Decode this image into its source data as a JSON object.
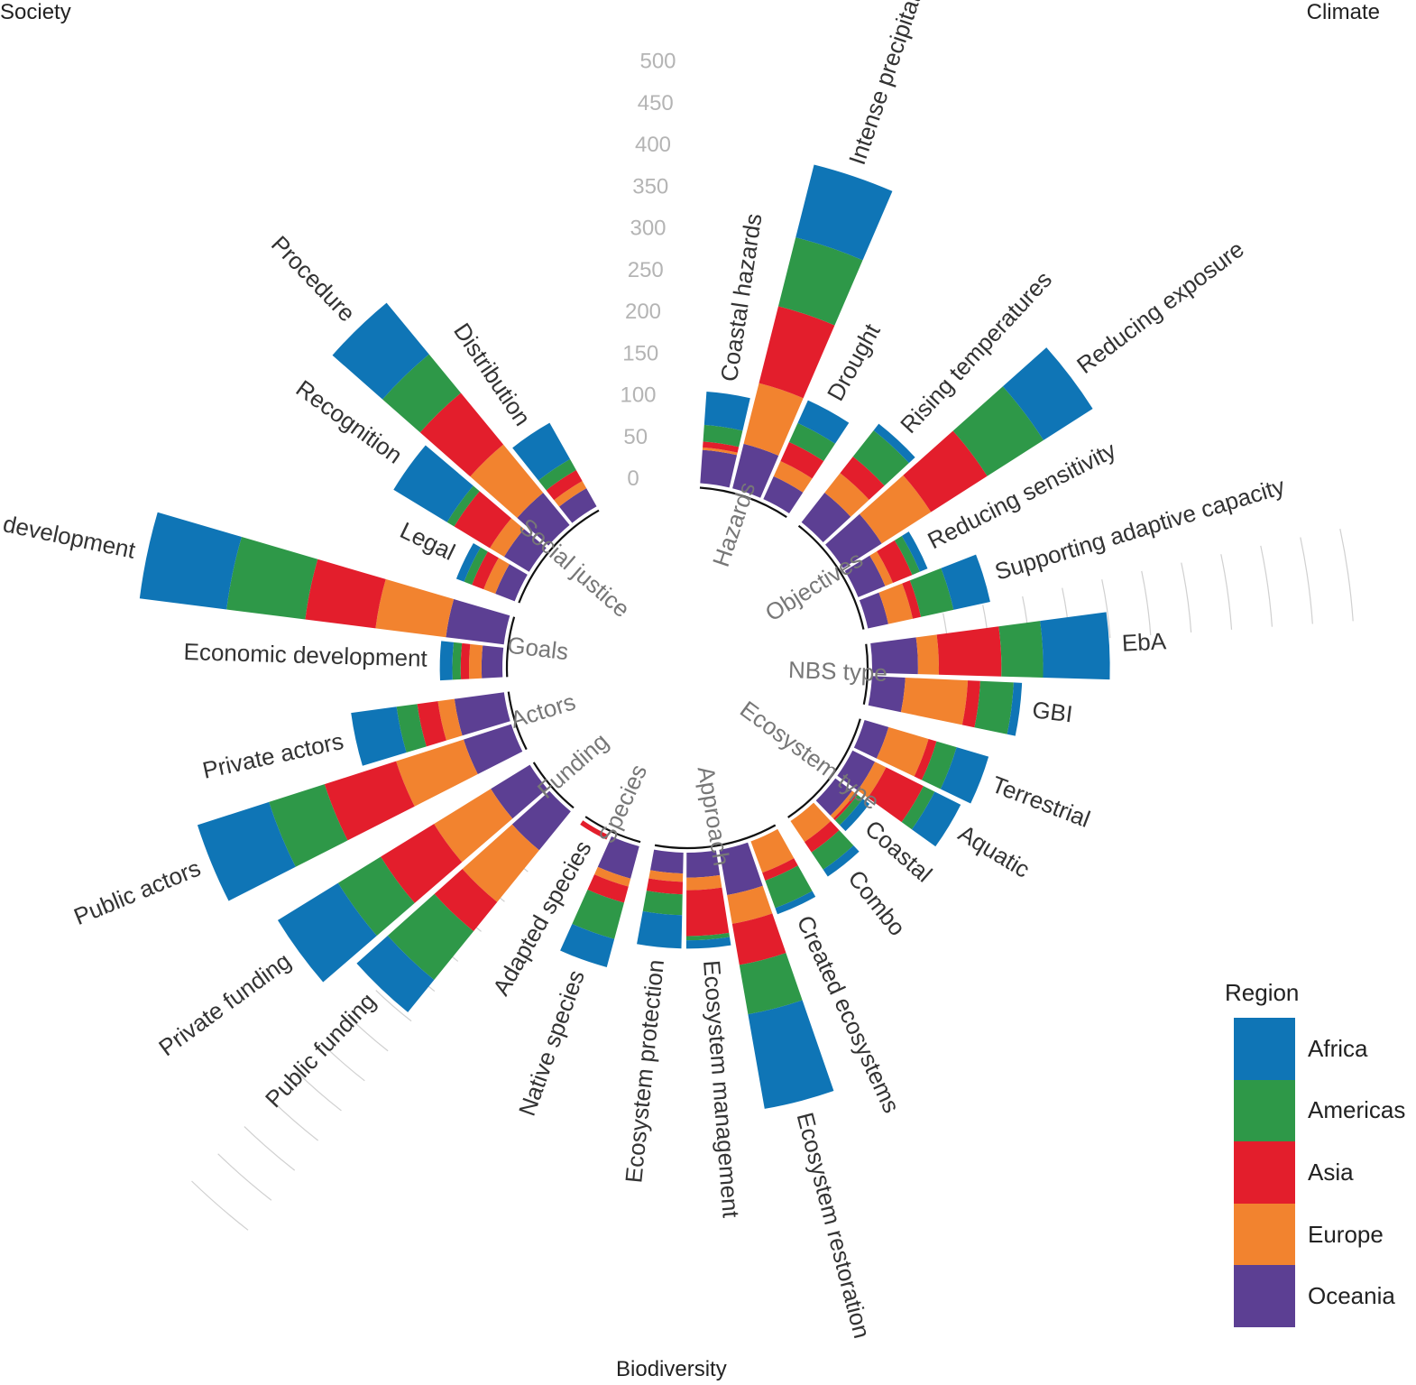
{
  "corners": {
    "top_left": "Society",
    "top_right": "Climate",
    "bottom": "Biodiversity"
  },
  "legend": {
    "title": "Region",
    "items": [
      {
        "name": "Africa",
        "color": "#0f75b6"
      },
      {
        "name": "Americas",
        "color": "#2e9848"
      },
      {
        "name": "Asia",
        "color": "#e31e2c"
      },
      {
        "name": "Europe",
        "color": "#f2832f"
      },
      {
        "name": "Oceania",
        "color": "#5c3f93"
      }
    ]
  },
  "chart_data": {
    "type": "radial stacked bar",
    "stack_order_inner_to_outer": [
      "Oceania",
      "Europe",
      "Asia",
      "Americas",
      "Africa"
    ],
    "radial_axis": {
      "range": [
        0,
        500
      ],
      "ticks": [
        "0",
        "50",
        "100",
        "150",
        "200",
        "250",
        "300",
        "350",
        "400",
        "450",
        "500"
      ]
    },
    "groups": [
      {
        "name": "Hazards",
        "bars": [
          {
            "label": "Coastal hazards",
            "values": {
              "Oceania": 40,
              "Europe": 3,
              "Asia": 7,
              "Americas": 20,
              "Africa": 40
            }
          },
          {
            "label": "Intense precipitation",
            "values": {
              "Oceania": 55,
              "Europe": 75,
              "Asia": 95,
              "Americas": 85,
              "Africa": 90
            }
          },
          {
            "label": "Drought",
            "values": {
              "Oceania": 30,
              "Europe": 20,
              "Asia": 25,
              "Americas": 25,
              "Africa": 30
            }
          }
        ]
      },
      {
        "name": "Objectives",
        "bars": [
          {
            "label": "Rising temperatures",
            "values": {
              "Oceania": 45,
              "Europe": 30,
              "Asia": 25,
              "Americas": 40,
              "Africa": 10
            }
          },
          {
            "label": "Reducing exposure",
            "values": {
              "Oceania": 55,
              "Europe": 70,
              "Asia": 80,
              "Americas": 80,
              "Africa": 70
            }
          },
          {
            "label": "Reducing sensitivity",
            "values": {
              "Oceania": 35,
              "Europe": 10,
              "Asia": 25,
              "Americas": 10,
              "Africa": 10
            }
          },
          {
            "label": "Supporting adaptive capacity",
            "values": {
              "Oceania": 25,
              "Europe": 30,
              "Asia": 10,
              "Americas": 40,
              "Africa": 45
            }
          }
        ]
      },
      {
        "name": "NBS type",
        "bars": [
          {
            "label": "EbA",
            "values": {
              "Oceania": 55,
              "Europe": 25,
              "Asia": 75,
              "Americas": 50,
              "Africa": 80
            }
          },
          {
            "label": "GBI",
            "values": {
              "Oceania": 40,
              "Europe": 75,
              "Asia": 15,
              "Americas": 40,
              "Africa": 10
            }
          }
        ]
      },
      {
        "name": "Ecosystem type",
        "bars": [
          {
            "label": "Terrestrial",
            "values": {
              "Oceania": 30,
              "Europe": 50,
              "Asia": 10,
              "Americas": 25,
              "Africa": 40
            }
          },
          {
            "label": "Aquatic",
            "values": {
              "Oceania": 30,
              "Europe": 15,
              "Asia": 50,
              "Americas": 15,
              "Africa": 35
            }
          },
          {
            "label": "Coastal",
            "values": {
              "Oceania": 25,
              "Europe": 5,
              "Asia": 3,
              "Americas": 8,
              "Africa": 10
            }
          },
          {
            "label": "Combo",
            "values": {
              "Oceania": 0,
              "Europe": 30,
              "Asia": 15,
              "Americas": 25,
              "Africa": 10
            }
          }
        ]
      },
      {
        "name": "Approach",
        "bars": [
          {
            "label": "Created ecosystems",
            "values": {
              "Oceania": 0,
              "Europe": 40,
              "Asia": 10,
              "Americas": 35,
              "Africa": 8
            }
          },
          {
            "label": "Ecosystem restoration",
            "values": {
              "Oceania": 55,
              "Europe": 35,
              "Asia": 50,
              "Americas": 60,
              "Africa": 115
            }
          },
          {
            "label": "Ecosystem management",
            "values": {
              "Oceania": 30,
              "Europe": 15,
              "Asia": 55,
              "Americas": 5,
              "Africa": 10
            }
          },
          {
            "label": "Ecosystem protection",
            "values": {
              "Oceania": 25,
              "Europe": 10,
              "Asia": 15,
              "Americas": 25,
              "Africa": 40
            }
          }
        ]
      },
      {
        "name": "Species",
        "bars": [
          {
            "label": "Native species",
            "values": {
              "Oceania": 40,
              "Europe": 10,
              "Asia": 20,
              "Americas": 45,
              "Africa": 35
            }
          },
          {
            "label": "Adapted species",
            "values": {
              "Oceania": 0,
              "Europe": 0,
              "Asia": 6,
              "Americas": 0,
              "Africa": 0
            }
          }
        ]
      },
      {
        "name": "Funding",
        "bars": [
          {
            "label": "Public funding",
            "values": {
              "Oceania": 60,
              "Europe": 80,
              "Asia": 45,
              "Americas": 75,
              "Africa": 50
            }
          },
          {
            "label": "Private funding",
            "values": {
              "Oceania": 55,
              "Europe": 80,
              "Asia": 75,
              "Americas": 60,
              "Africa": 85
            }
          }
        ]
      },
      {
        "name": "Actors",
        "bars": [
          {
            "label": "Public actors",
            "values": {
              "Oceania": 60,
              "Europe": 85,
              "Asia": 90,
              "Americas": 70,
              "Africa": 90
            }
          },
          {
            "label": "Private actors",
            "values": {
              "Oceania": 60,
              "Europe": 20,
              "Asia": 25,
              "Americas": 25,
              "Africa": 55
            }
          }
        ]
      },
      {
        "name": "Goals",
        "bars": [
          {
            "label": "Economic development",
            "values": {
              "Oceania": 25,
              "Europe": 15,
              "Asia": 10,
              "Americas": 10,
              "Africa": 15
            }
          },
          {
            "label": "General urban development",
            "values": {
              "Oceania": 70,
              "Europe": 85,
              "Asia": 85,
              "Americas": 95,
              "Africa": 105
            }
          }
        ]
      },
      {
        "name": "Social justice",
        "bars": [
          {
            "label": "Legal",
            "values": {
              "Oceania": 25,
              "Europe": 15,
              "Asia": 15,
              "Americas": 10,
              "Africa": 10
            }
          },
          {
            "label": "Recognition",
            "values": {
              "Oceania": 35,
              "Europe": 20,
              "Asia": 50,
              "Americas": 10,
              "Africa": 75
            }
          },
          {
            "label": "Procedure",
            "values": {
              "Oceania": 50,
              "Europe": 75,
              "Asia": 80,
              "Americas": 60,
              "Africa": 80
            }
          },
          {
            "label": "Distribution",
            "values": {
              "Oceania": 25,
              "Europe": 10,
              "Asia": 15,
              "Americas": 15,
              "Africa": 50
            }
          }
        ]
      }
    ]
  }
}
